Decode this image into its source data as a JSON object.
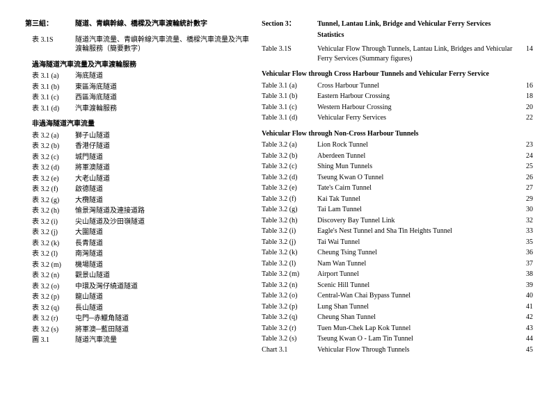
{
  "left": {
    "section_label_zh": "第三組：",
    "section_title_zh": "隧道、青嶼幹線、橋樑及汽車渡輪統計數字",
    "summary": {
      "label": "表 3.1S",
      "text": "隧道汽車流量、青嶼幹線汽車流量、橋樑汽車流量及汽車渡輪服務（簡要數字）"
    },
    "group1_head": "過海隧道汽車流量及汽車渡輪服務",
    "group1": [
      {
        "label": "表 3.1 (a)",
        "text": "海底隧道"
      },
      {
        "label": "表 3.1 (b)",
        "text": "東區海底隧道"
      },
      {
        "label": "表 3.1 (c)",
        "text": "西區海底隧道"
      },
      {
        "label": "表 3.1 (d)",
        "text": "汽車渡輪服務"
      }
    ],
    "group2_head": "非過海隧道汽車流量",
    "group2": [
      {
        "label": "表 3.2 (a)",
        "text": "獅子山隧道"
      },
      {
        "label": "表 3.2 (b)",
        "text": "香港仔隧道"
      },
      {
        "label": "表 3.2 (c)",
        "text": "城門隧道"
      },
      {
        "label": "表 3.2 (d)",
        "text": "將軍澳隧道"
      },
      {
        "label": "表 3.2 (e)",
        "text": "大老山隧道"
      },
      {
        "label": "表 3.2 (f)",
        "text": "啟德隧道"
      },
      {
        "label": "表 3.2 (g)",
        "text": "大欖隧道"
      },
      {
        "label": "表 3.2 (h)",
        "text": "愉景灣隧道及連接道路"
      },
      {
        "label": "表 3.2 (i)",
        "text": "尖山隧道及沙田嶺隧道"
      },
      {
        "label": "表 3.2 (j)",
        "text": "大圍隧道"
      },
      {
        "label": "表 3.2 (k)",
        "text": "長青隧道"
      },
      {
        "label": "表 3.2 (l)",
        "text": "南灣隧道"
      },
      {
        "label": "表 3.2 (m)",
        "text": "機場隧道"
      },
      {
        "label": "表 3.2 (n)",
        "text": "觀景山隧道"
      },
      {
        "label": "表 3.2 (o)",
        "text": "中環及灣仔繞道隧道"
      },
      {
        "label": "表 3.2 (p)",
        "text": "龍山隧道"
      },
      {
        "label": "表 3.2 (q)",
        "text": "長山隧道"
      },
      {
        "label": "表 3.2 (r)",
        "text": "屯門─赤鱲角隧道"
      },
      {
        "label": "表 3.2 (s)",
        "text": "將軍澳─藍田隧道"
      },
      {
        "label": "圖 3.1",
        "text": "隧道汽車流量"
      }
    ]
  },
  "right": {
    "section_label_en": "Section 3：",
    "section_title_en": "Tunnel, Lantau Link, Bridge and Vehicular Ferry Services",
    "stats_word": "Statistics",
    "summary": {
      "label": "Table 3.1S",
      "text": "Vehicular Flow Through Tunnels, Lantau Link, Bridges and Vehicular Ferry Services (Summary figures)",
      "page": "14"
    },
    "group1_head": "Vehicular Flow through Cross Harbour Tunnels and Vehicular Ferry Service",
    "group1": [
      {
        "label": "Table 3.1 (a)",
        "text": "Cross Harbour Tunnel",
        "page": "16"
      },
      {
        "label": "Table 3.1 (b)",
        "text": "Eastern Harbour Crossing",
        "page": "18"
      },
      {
        "label": "Table 3.1 (c)",
        "text": "Western Harbour Crossing",
        "page": "20"
      },
      {
        "label": "Table 3.1 (d)",
        "text": "Vehicular Ferry Services",
        "page": "22"
      }
    ],
    "group2_head": "Vehicular Flow through Non-Cross Harbour Tunnels",
    "group2": [
      {
        "label": "Table 3.2 (a)",
        "text": "Lion Rock Tunnel",
        "page": "23"
      },
      {
        "label": "Table 3.2 (b)",
        "text": "Aberdeen Tunnel",
        "page": "24"
      },
      {
        "label": "Table 3.2 (c)",
        "text": "Shing Mun Tunnels",
        "page": "25"
      },
      {
        "label": "Table 3.2 (d)",
        "text": "Tseung Kwan O Tunnel",
        "page": "26"
      },
      {
        "label": "Table 3.2 (e)",
        "text": "Tate's Cairn Tunnel",
        "page": "27"
      },
      {
        "label": "Table 3.2 (f)",
        "text": "Kai Tak Tunnel",
        "page": "29"
      },
      {
        "label": "Table 3.2 (g)",
        "text": "Tai Lam Tunnel",
        "page": "30"
      },
      {
        "label": "Table 3.2 (h)",
        "text": "Discovery Bay Tunnel Link",
        "page": "32"
      },
      {
        "label": "Table 3.2 (i)",
        "text": "Eagle's Nest Tunnel and Sha Tin Heights Tunnel",
        "page": "33"
      },
      {
        "label": "Table 3.2 (j)",
        "text": "Tai Wai Tunnel",
        "page": "35"
      },
      {
        "label": "Table 3.2 (k)",
        "text": "Cheung Tsing Tunnel",
        "page": "36"
      },
      {
        "label": "Table 3.2 (l)",
        "text": "Nam Wan Tunnel",
        "page": "37"
      },
      {
        "label": "Table 3.2 (m)",
        "text": "Airport Tunnel",
        "page": "38"
      },
      {
        "label": "Table 3.2 (n)",
        "text": "Scenic Hill Tunnel",
        "page": "39"
      },
      {
        "label": "Table 3.2 (o)",
        "text": "Central-Wan Chai Bypass Tunnel",
        "page": "40"
      },
      {
        "label": "Table 3.2 (p)",
        "text": "Lung Shan Tunnel",
        "page": "41"
      },
      {
        "label": "Table 3.2 (q)",
        "text": "Cheung Shan Tunnel",
        "page": "42"
      },
      {
        "label": "Table 3.2 (r)",
        "text": "Tuen Mun-Chek Lap Kok Tunnel",
        "page": "43"
      },
      {
        "label": "Table 3.2 (s)",
        "text": "Tseung Kwan O - Lam Tin Tunnel",
        "page": "44"
      },
      {
        "label": "Chart 3.1",
        "text": "Vehicular Flow Through Tunnels",
        "page": "45"
      }
    ]
  }
}
